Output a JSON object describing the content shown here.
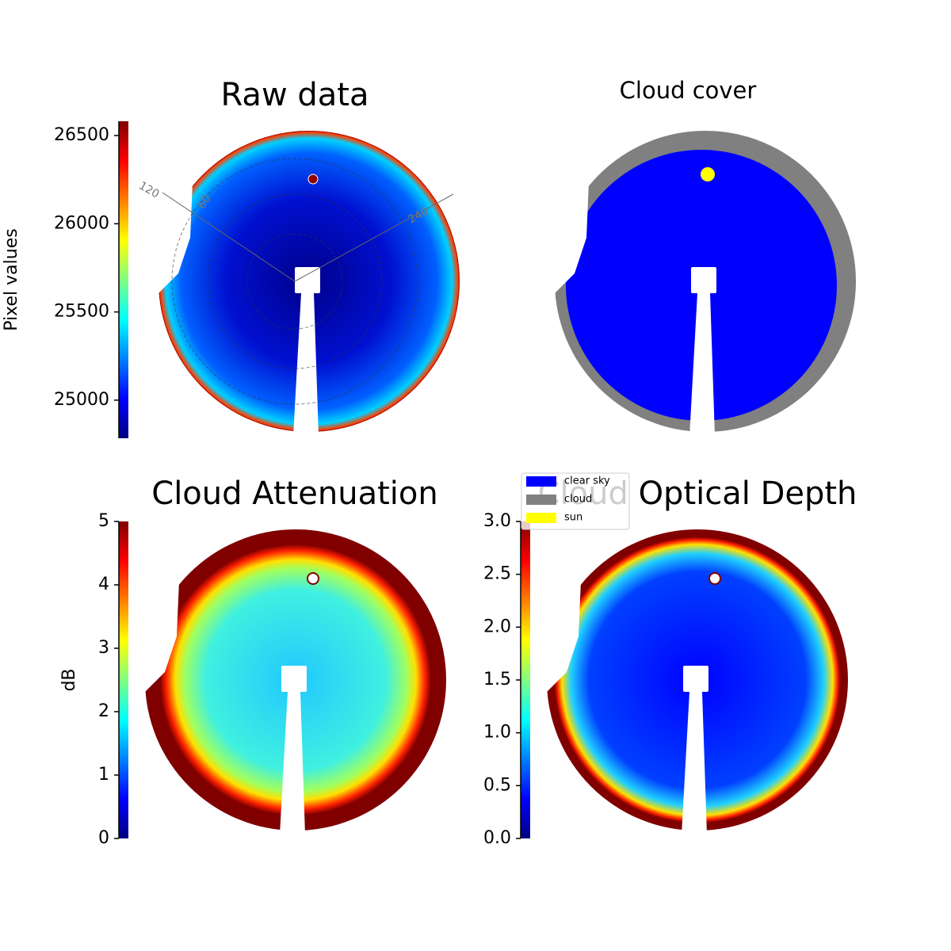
{
  "chart_data": [
    {
      "type": "image",
      "title": "Raw data",
      "colormap": "jet",
      "ylabel": "Pixel values",
      "ylim": [
        24784,
        26581
      ],
      "yticks": [
        25000,
        25500,
        26000,
        26500
      ],
      "annotations": [
        "120",
        "60",
        "240"
      ]
    },
    {
      "type": "image",
      "title": "Cloud cover",
      "legend": "lower left",
      "series": [
        {
          "name": "clear sky",
          "color": "#0000ff"
        },
        {
          "name": "cloud",
          "color": "#808080"
        },
        {
          "name": "sun",
          "color": "#ffff00"
        }
      ]
    },
    {
      "type": "image",
      "title": "Cloud Attenuation",
      "colormap": "jet",
      "ylabel": "dB",
      "ylim": [
        0,
        5
      ],
      "yticks": [
        0,
        1,
        2,
        3,
        4,
        5
      ]
    },
    {
      "type": "image",
      "title": "Cloud Optical Depth",
      "colormap": "jet",
      "ylim": [
        0,
        3
      ],
      "yticks": [
        {
          "value": 0,
          "label": "0.0"
        },
        0.5,
        {
          "value": 1,
          "label": "1.0"
        },
        1.5,
        {
          "value": 2,
          "label": "2.0"
        },
        2.5,
        {
          "value": 3,
          "label": "3.0"
        }
      ]
    }
  ]
}
